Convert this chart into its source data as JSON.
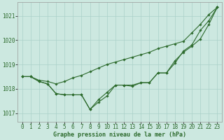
{
  "title": "Graphe pression niveau de la mer (hPa)",
  "background_color": "#cce8e0",
  "grid_color": "#aad0c8",
  "line_color": "#2d6b2d",
  "marker_color": "#2d6b2d",
  "ylim": [
    1016.65,
    1021.55
  ],
  "yticks": [
    1017,
    1018,
    1019,
    1020,
    1021
  ],
  "xlim": [
    -0.5,
    23.5
  ],
  "xticks": [
    0,
    1,
    2,
    3,
    4,
    5,
    6,
    7,
    8,
    9,
    10,
    11,
    12,
    13,
    14,
    15,
    16,
    17,
    18,
    19,
    20,
    21,
    22,
    23
  ],
  "series1": [
    1018.5,
    1018.5,
    1018.35,
    1018.3,
    1018.2,
    1018.3,
    1018.45,
    1018.55,
    1018.7,
    1018.85,
    1019.0,
    1019.1,
    1019.2,
    1019.3,
    1019.4,
    1019.5,
    1019.65,
    1019.75,
    1019.85,
    1019.95,
    1020.3,
    1020.65,
    1021.05,
    1021.35
  ],
  "series2": [
    1018.5,
    1018.5,
    1018.3,
    1018.2,
    1017.8,
    1017.75,
    1017.75,
    1017.75,
    1017.15,
    1017.55,
    1017.85,
    1018.15,
    1018.15,
    1018.15,
    1018.25,
    1018.25,
    1018.65,
    1018.65,
    1019.05,
    1019.55,
    1019.8,
    1020.4,
    1020.8,
    1021.35
  ],
  "series3": [
    1018.5,
    1018.5,
    1018.3,
    1018.2,
    1017.8,
    1017.75,
    1017.75,
    1017.75,
    1017.15,
    1017.45,
    1017.7,
    1018.15,
    1018.15,
    1018.1,
    1018.25,
    1018.25,
    1018.65,
    1018.65,
    1019.15,
    1019.5,
    1019.75,
    1020.05,
    1020.65,
    1021.35
  ],
  "xlabel_fontsize": 5.5,
  "ylabel_fontsize": 5.5,
  "title_fontsize": 6.0,
  "marker_size": 1.8,
  "line_width": 0.8
}
